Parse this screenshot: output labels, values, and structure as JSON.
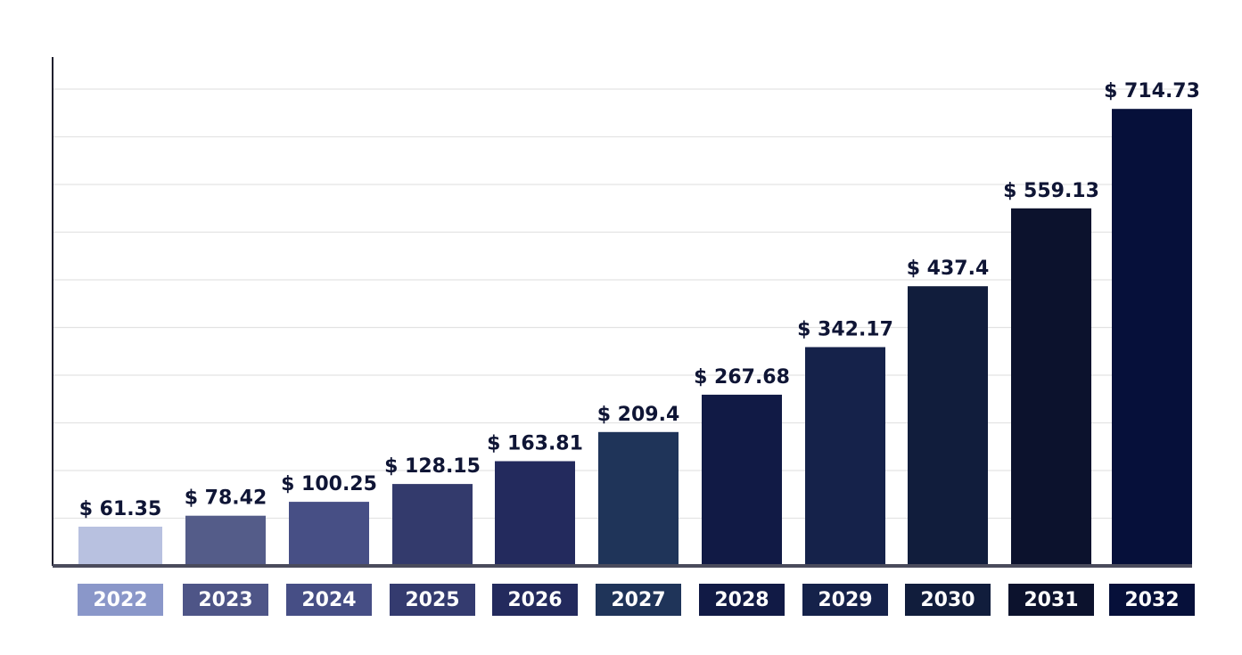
{
  "chart_data": {
    "type": "bar",
    "title": "",
    "xlabel": "",
    "ylabel": "",
    "ylim": [
      0,
      780
    ],
    "grid": true,
    "value_prefix": "$ ",
    "categories": [
      "2022",
      "2023",
      "2024",
      "2025",
      "2026",
      "2027",
      "2028",
      "2029",
      "2030",
      "2031",
      "2032"
    ],
    "values": [
      61.35,
      78.42,
      100.25,
      128.15,
      163.81,
      209.4,
      267.68,
      342.17,
      437.4,
      559.13,
      714.73
    ],
    "value_labels": [
      "$ 61.35",
      "$ 78.42",
      "$ 100.25",
      "$ 128.15",
      "$ 163.81",
      "$ 209.4",
      "$ 267.68",
      "$ 342.17",
      "$ 437.4",
      "$ 559.13",
      "$ 714.73"
    ],
    "bar_colors": [
      "#b8c1e0",
      "#545c89",
      "#474f85",
      "#333a6c",
      "#232a5d",
      "#1f3459",
      "#111a45",
      "#15224a",
      "#111d3c",
      "#0c122d",
      "#06103a"
    ],
    "label_box_colors": [
      "#8a97c9",
      "#4e5587",
      "#464e85",
      "#343b6f",
      "#232a5d",
      "#1f3459",
      "#111a45",
      "#15224a",
      "#111d3c",
      "#0c122d",
      "#06103a"
    ]
  }
}
